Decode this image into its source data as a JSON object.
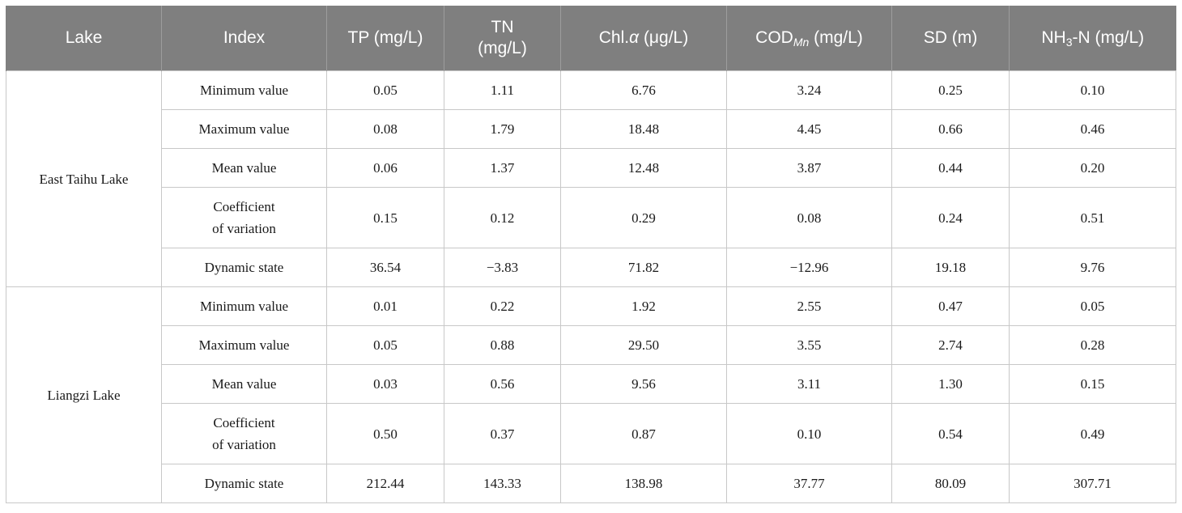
{
  "headers": {
    "lake": "Lake",
    "index": "Index",
    "tp": "TP (mg/L)",
    "tn_line1": "TN",
    "tn_line2": "(mg/L)",
    "chl_prefix": "Chl.",
    "chl_alpha": "α",
    "chl_suffix": " (μg/L)",
    "cod_main": "COD",
    "cod_sub": "Mn",
    "cod_unit": " (mg/L)",
    "sd": "SD (m)",
    "nh_main": "NH",
    "nh_sub": "3",
    "nh_unit": "-N (mg/L)"
  },
  "groups": [
    {
      "lake": "East Taihu Lake",
      "rows": [
        {
          "index": "Minimum value",
          "tp": "0.05",
          "tn": "1.11",
          "chl": "6.76",
          "cod": "3.24",
          "sd": "0.25",
          "nh3n": "0.10"
        },
        {
          "index": "Maximum value",
          "tp": "0.08",
          "tn": "1.79",
          "chl": "18.48",
          "cod": "4.45",
          "sd": "0.66",
          "nh3n": "0.46"
        },
        {
          "index": "Mean value",
          "tp": "0.06",
          "tn": "1.37",
          "chl": "12.48",
          "cod": "3.87",
          "sd": "0.44",
          "nh3n": "0.20"
        },
        {
          "index_line1": "Coefficient",
          "index_line2": "of variation",
          "tp": "0.15",
          "tn": "0.12",
          "chl": "0.29",
          "cod": "0.08",
          "sd": "0.24",
          "nh3n": "0.51"
        },
        {
          "index": "Dynamic state",
          "tp": "36.54",
          "tn": "−3.83",
          "chl": "71.82",
          "cod": "−12.96",
          "sd": "19.18",
          "nh3n": "9.76"
        }
      ]
    },
    {
      "lake": "Liangzi Lake",
      "rows": [
        {
          "index": "Minimum value",
          "tp": "0.01",
          "tn": "0.22",
          "chl": "1.92",
          "cod": "2.55",
          "sd": "0.47",
          "nh3n": "0.05"
        },
        {
          "index": "Maximum value",
          "tp": "0.05",
          "tn": "0.88",
          "chl": "29.50",
          "cod": "3.55",
          "sd": "2.74",
          "nh3n": "0.28"
        },
        {
          "index": "Mean value",
          "tp": "0.03",
          "tn": "0.56",
          "chl": "9.56",
          "cod": "3.11",
          "sd": "1.30",
          "nh3n": "0.15"
        },
        {
          "index_line1": "Coefficient",
          "index_line2": "of variation",
          "tp": "0.50",
          "tn": "0.37",
          "chl": "0.87",
          "cod": "0.10",
          "sd": "0.54",
          "nh3n": "0.49"
        },
        {
          "index": "Dynamic state",
          "tp": "212.44",
          "tn": "143.33",
          "chl": "138.98",
          "cod": "37.77",
          "sd": "80.09",
          "nh3n": "307.71"
        }
      ]
    }
  ]
}
